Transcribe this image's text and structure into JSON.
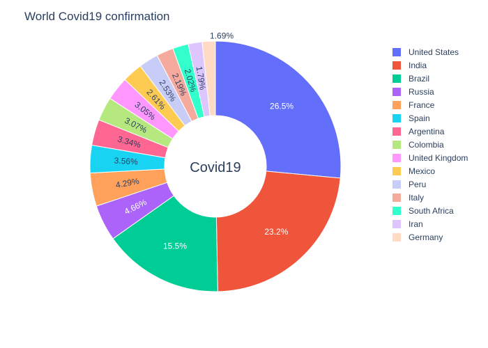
{
  "chart_data": {
    "type": "pie",
    "title": "World Covid19 confirmation",
    "center_label": "Covid19",
    "hole": true,
    "legend_position": "right",
    "slices": [
      {
        "label": "United States",
        "percent": 26.5,
        "text": "26.5%",
        "color": "#636efa"
      },
      {
        "label": "India",
        "percent": 23.2,
        "text": "23.2%",
        "color": "#EF553B"
      },
      {
        "label": "Brazil",
        "percent": 15.5,
        "text": "15.5%",
        "color": "#00cc96"
      },
      {
        "label": "Russia",
        "percent": 4.66,
        "text": "4.66%",
        "color": "#ab63fa"
      },
      {
        "label": "France",
        "percent": 4.29,
        "text": "4.29%",
        "color": "#FFA15A"
      },
      {
        "label": "Spain",
        "percent": 3.56,
        "text": "3.56%",
        "color": "#19d3f3"
      },
      {
        "label": "Argentina",
        "percent": 3.34,
        "text": "3.34%",
        "color": "#FF6692"
      },
      {
        "label": "Colombia",
        "percent": 3.07,
        "text": "3.07%",
        "color": "#B6E880"
      },
      {
        "label": "United Kingdom",
        "percent": 3.05,
        "text": "3.05%",
        "color": "#FF97FF"
      },
      {
        "label": "Mexico",
        "percent": 2.61,
        "text": "2.61%",
        "color": "#FECB52"
      },
      {
        "label": "Peru",
        "percent": 2.53,
        "text": "2.53%",
        "color": "#c8cdf8"
      },
      {
        "label": "Italy",
        "percent": 2.19,
        "text": "2.19%",
        "color": "#f6aa9e"
      },
      {
        "label": "South Africa",
        "percent": 2.02,
        "text": "2.02%",
        "color": "#33ffcc"
      },
      {
        "label": "Iran",
        "percent": 1.79,
        "text": "1.79%",
        "color": "#ddc6fd"
      },
      {
        "label": "Germany",
        "percent": 1.69,
        "text": "1.69%",
        "color": "#ffdac4"
      }
    ]
  }
}
